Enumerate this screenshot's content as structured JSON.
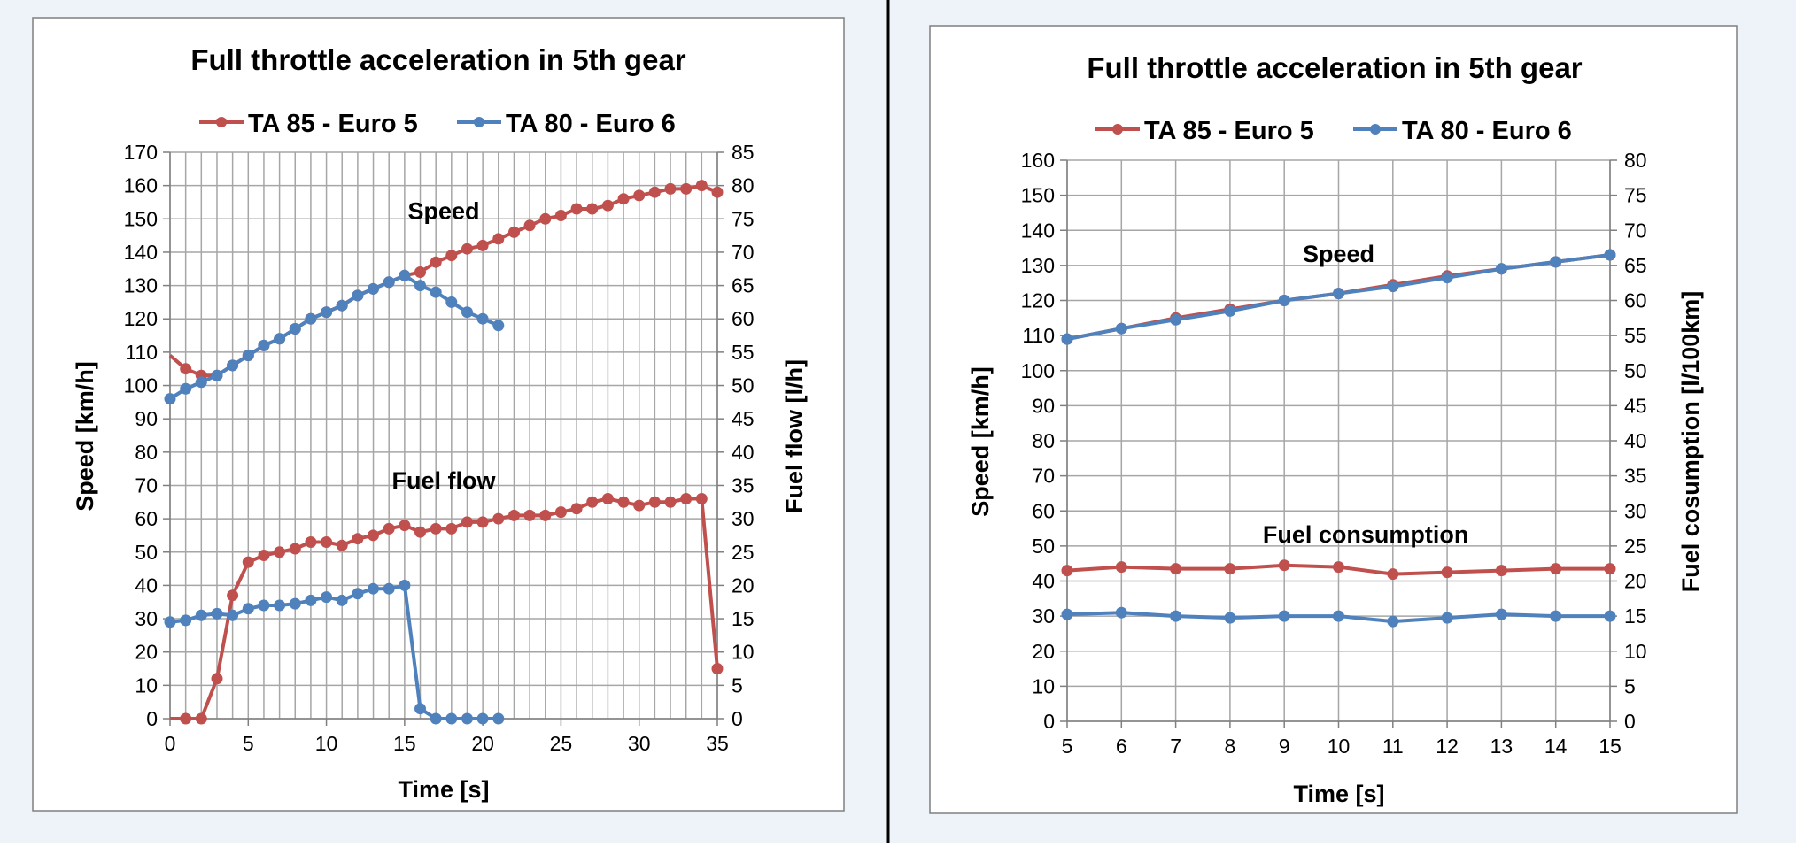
{
  "colors": {
    "page_bg": "#eef2f9",
    "divider": "#000000",
    "series_red": "#c0504d",
    "series_blue": "#4f81bd",
    "grid": "#a6a6a6",
    "frame": "#7f7f7f"
  },
  "chart_data": [
    {
      "type": "line",
      "title": "Full throttle acceleration in 5th gear",
      "xlabel": "Time [s]",
      "ylabel": "Speed [km/h]",
      "y2label": "Fuel flow [l/h]",
      "xlim": [
        0,
        35
      ],
      "xticks": [
        0,
        5,
        10,
        15,
        20,
        25,
        30,
        35
      ],
      "ylim": [
        0,
        170
      ],
      "yticks": [
        0,
        10,
        20,
        30,
        40,
        50,
        60,
        70,
        80,
        90,
        100,
        110,
        120,
        130,
        140,
        150,
        160,
        170
      ],
      "y2lim": [
        0,
        85
      ],
      "y2ticks": [
        0,
        5,
        10,
        15,
        20,
        25,
        30,
        35,
        40,
        45,
        50,
        55,
        60,
        65,
        70,
        75,
        80,
        85
      ],
      "grid": true,
      "legend_position": "top",
      "annotations": [
        {
          "text": "Speed",
          "x": 17.5,
          "y": 150
        },
        {
          "text": "Fuel flow",
          "x": 17.5,
          "y": 69
        }
      ],
      "series": [
        {
          "name": "TA 85 - Euro 5",
          "color": "#c0504d",
          "axis": "left",
          "x": [
            1,
            2,
            3,
            4,
            5,
            6,
            7,
            8,
            9,
            10,
            11,
            12,
            13,
            14,
            15,
            16,
            17,
            18,
            19,
            20,
            21,
            22,
            23,
            24,
            25,
            26,
            27,
            28,
            29,
            30,
            31,
            32,
            33,
            34,
            35
          ],
          "y": [
            105,
            103,
            103,
            106,
            109,
            112,
            114,
            117,
            120,
            122,
            124,
            127,
            129,
            131,
            133,
            134,
            137,
            139,
            141,
            142,
            144,
            146,
            148,
            150,
            151,
            153,
            153,
            154,
            156,
            157,
            158,
            159,
            159,
            160,
            158
          ],
          "lead": {
            "x": 0,
            "y": 109
          }
        },
        {
          "name": "TA 80 - Euro 6",
          "color": "#4f81bd",
          "axis": "left",
          "x": [
            0,
            1,
            2,
            3,
            4,
            5,
            6,
            7,
            8,
            9,
            10,
            11,
            12,
            13,
            14,
            15,
            16,
            17,
            18,
            19,
            20,
            21
          ],
          "y": [
            96,
            99,
            101,
            103,
            106,
            109,
            112,
            114,
            117,
            120,
            122,
            124,
            127,
            129,
            131,
            133,
            130,
            128,
            125,
            122,
            120,
            118
          ]
        },
        {
          "name": "TA 85 - Euro 5",
          "color": "#c0504d",
          "axis": "right",
          "x": [
            1,
            2,
            3,
            4,
            5,
            6,
            7,
            8,
            9,
            10,
            11,
            12,
            13,
            14,
            15,
            16,
            17,
            18,
            19,
            20,
            21,
            22,
            23,
            24,
            25,
            26,
            27,
            28,
            29,
            30,
            31,
            32,
            33,
            34,
            35
          ],
          "y": [
            0,
            0,
            6,
            18.5,
            23.5,
            24.5,
            25,
            25.5,
            26.5,
            26.5,
            26,
            27,
            27.5,
            28.5,
            29,
            28,
            28.5,
            28.5,
            29.5,
            29.5,
            30,
            30.5,
            30.5,
            30.5,
            31,
            31.5,
            32.5,
            33,
            32.5,
            32,
            32.5,
            32.5,
            33,
            33,
            7.5
          ],
          "lead": {
            "x": 0,
            "y": 0
          }
        },
        {
          "name": "TA 80 - Euro 6",
          "color": "#4f81bd",
          "axis": "right",
          "x": [
            0,
            1,
            2,
            3,
            4,
            5,
            6,
            7,
            8,
            9,
            10,
            11,
            12,
            13,
            14,
            15,
            16,
            17,
            18,
            19,
            20,
            21
          ],
          "y": [
            14.5,
            14.75,
            15.5,
            15.75,
            15.5,
            16.5,
            17,
            17,
            17.25,
            17.75,
            18.25,
            17.75,
            18.75,
            19.5,
            19.5,
            20,
            1.5,
            0,
            0,
            0,
            0,
            0
          ]
        }
      ]
    },
    {
      "type": "line",
      "title": "Full throttle acceleration in 5th gear",
      "xlabel": "Time [s]",
      "ylabel": "Speed [km/h]",
      "y2label": "Fuel cosumption [l/100km]",
      "xlim": [
        5,
        15
      ],
      "xticks": [
        5,
        6,
        7,
        8,
        9,
        10,
        11,
        12,
        13,
        14,
        15
      ],
      "ylim": [
        0,
        160
      ],
      "yticks": [
        0,
        10,
        20,
        30,
        40,
        50,
        60,
        70,
        80,
        90,
        100,
        110,
        120,
        130,
        140,
        150,
        160
      ],
      "y2lim": [
        0,
        80
      ],
      "y2ticks": [
        0,
        5,
        10,
        15,
        20,
        25,
        30,
        35,
        40,
        45,
        50,
        55,
        60,
        65,
        70,
        75,
        80
      ],
      "grid": true,
      "legend_position": "top",
      "annotations": [
        {
          "text": "Speed",
          "x": 10,
          "y": 131
        },
        {
          "text": "Fuel consumption",
          "x": 10.5,
          "y": 51
        }
      ],
      "series": [
        {
          "name": "TA 85 - Euro 5",
          "color": "#c0504d",
          "axis": "left",
          "x": [
            5,
            6,
            7,
            8,
            9,
            10,
            11,
            12,
            13,
            14,
            15
          ],
          "y": [
            109,
            112,
            115,
            117.5,
            120,
            122,
            124.5,
            127,
            129,
            131,
            133
          ]
        },
        {
          "name": "TA 80 - Euro 6",
          "color": "#4f81bd",
          "axis": "left",
          "x": [
            5,
            6,
            7,
            8,
            9,
            10,
            11,
            12,
            13,
            14,
            15
          ],
          "y": [
            109,
            112,
            114.5,
            117,
            120,
            122,
            124,
            126.5,
            129,
            131,
            133
          ]
        },
        {
          "name": "TA 85 - Euro 5",
          "color": "#c0504d",
          "axis": "right",
          "x": [
            5,
            6,
            7,
            8,
            9,
            10,
            11,
            12,
            13,
            14,
            15
          ],
          "y": [
            21.5,
            22,
            21.75,
            21.75,
            22.25,
            22,
            21,
            21.25,
            21.5,
            21.75,
            21.75
          ]
        },
        {
          "name": "TA 80 - Euro 6",
          "color": "#4f81bd",
          "axis": "right",
          "x": [
            5,
            6,
            7,
            8,
            9,
            10,
            11,
            12,
            13,
            14,
            15
          ],
          "y": [
            15.25,
            15.5,
            15,
            14.75,
            15,
            15,
            14.25,
            14.75,
            15.25,
            15,
            15
          ]
        }
      ]
    }
  ]
}
